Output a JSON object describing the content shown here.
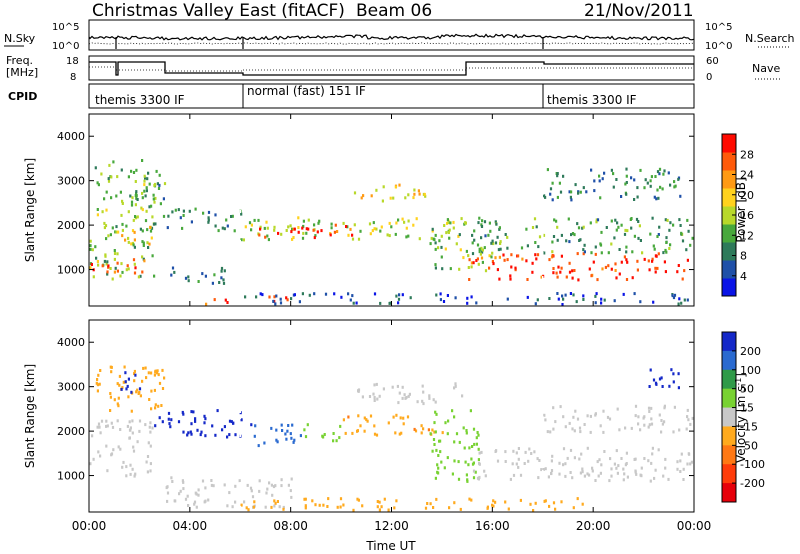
{
  "header": {
    "title": "Christmas Valley East (fitACF)",
    "beam": "Beam 06",
    "date": "21/Nov/2011"
  },
  "summary_panels": {
    "nsky_label": "N.Sky",
    "nsky_ticks": [
      "10^5",
      "10^0"
    ],
    "nsearch_label": "N.Search",
    "nsearch_ticks": [
      "10^5",
      "10^0"
    ],
    "freq_label_line1": "Freq.",
    "freq_label_line2": "[MHz]",
    "freq_ticks": [
      "18",
      "8"
    ],
    "nave_label": "Nave",
    "nave_ticks": [
      "60",
      "0"
    ],
    "cpid_label": "CPID",
    "cpid_segments": [
      {
        "label": "themis 3300 IF",
        "start_hour": 0,
        "end_hour": 6
      },
      {
        "label": "normal (fast) 151 IF",
        "start_hour": 6,
        "end_hour": 18
      },
      {
        "label": "themis 3300 IF",
        "start_hour": 18,
        "end_hour": 24
      }
    ]
  },
  "chart_data": [
    {
      "type": "heatmap",
      "name": "power",
      "ylabel": "Slant Range [km]",
      "xlabel": "Time UT",
      "ylim": [
        180,
        4500
      ],
      "y_ticks": [
        1000,
        2000,
        3000,
        4000
      ],
      "x_ticks": [
        "00:00",
        "04:00",
        "08:00",
        "12:00",
        "16:00",
        "20:00",
        "00:00"
      ],
      "colorbar": {
        "label": "Power [dB]",
        "ticks": [
          "4",
          "8",
          "12",
          "16",
          "20",
          "24",
          "28"
        ],
        "colors": [
          "#0a14e6",
          "#1f50a8",
          "#2e7a5a",
          "#48a83c",
          "#b8d82a",
          "#ffd21e",
          "#ff9a14",
          "#ff5a0a",
          "#ff0a00"
        ]
      },
      "scatter_regions": [
        {
          "t": [
            0.0,
            2.6
          ],
          "r": [
            800,
            3500
          ],
          "power": 14
        },
        {
          "t": [
            0.0,
            2.3
          ],
          "r": [
            950,
            1300
          ],
          "power": 26
        },
        {
          "t": [
            1.1,
            2.5
          ],
          "r": [
            1500,
            2000
          ],
          "power": 20
        },
        {
          "t": [
            1.8,
            3.0
          ],
          "r": [
            2500,
            3300
          ],
          "power": 12
        },
        {
          "t": [
            2.5,
            6.0
          ],
          "r": [
            1900,
            2400
          ],
          "power": 10
        },
        {
          "t": [
            3.0,
            5.5
          ],
          "r": [
            700,
            1100
          ],
          "power": 8
        },
        {
          "t": [
            4.5,
            5.7
          ],
          "r": [
            240,
            420
          ],
          "power": 26
        },
        {
          "t": [
            6.0,
            15.0
          ],
          "r": [
            1700,
            2200
          ],
          "power": 16
        },
        {
          "t": [
            6.5,
            10.5
          ],
          "r": [
            1750,
            2050
          ],
          "power": 27
        },
        {
          "t": [
            7.0,
            8.5
          ],
          "r": [
            250,
            430
          ],
          "power": 26
        },
        {
          "t": [
            10.5,
            13.5
          ],
          "r": [
            2550,
            2950
          ],
          "power": 20
        },
        {
          "t": [
            13.5,
            16.0
          ],
          "r": [
            1000,
            2200
          ],
          "power": 14
        },
        {
          "t": [
            15.0,
            24.0
          ],
          "r": [
            800,
            1400
          ],
          "power": 27
        },
        {
          "t": [
            15.0,
            24.0
          ],
          "r": [
            1400,
            2200
          ],
          "power": 12
        },
        {
          "t": [
            18.0,
            24.0
          ],
          "r": [
            2600,
            3300
          ],
          "power": 10
        },
        {
          "t": [
            6.0,
            24.0
          ],
          "r": [
            200,
            500
          ],
          "power": 6
        }
      ]
    },
    {
      "type": "heatmap",
      "name": "velocity",
      "ylabel": "Slant Range [km]",
      "xlabel": "Time UT",
      "ylim": [
        180,
        4500
      ],
      "y_ticks": [
        1000,
        2000,
        3000,
        4000
      ],
      "x_ticks": [
        "00:00",
        "04:00",
        "08:00",
        "12:00",
        "16:00",
        "20:00",
        "00:00"
      ],
      "colorbar": {
        "label_main": "Velocity [m s",
        "label_sup": "-1",
        "label_end": "]",
        "ticks": [
          "200",
          "100",
          "50",
          "15",
          "-15",
          "-50",
          "-100",
          "-200"
        ],
        "colors": [
          "#1428c8",
          "#2a6ad0",
          "#2f9a48",
          "#78d232",
          "#c8c8c8",
          "#ffaa1e",
          "#ff7814",
          "#ff3c0a",
          "#e6000a"
        ]
      },
      "scatter_regions": [
        {
          "t": [
            0.0,
            3.0
          ],
          "r": [
            2400,
            3500
          ],
          "v": -60
        },
        {
          "t": [
            0.0,
            2.5
          ],
          "r": [
            1000,
            2300
          ],
          "v": 0
        },
        {
          "t": [
            1.0,
            2.0
          ],
          "r": [
            2900,
            3400
          ],
          "v": 200
        },
        {
          "t": [
            2.5,
            6.5
          ],
          "r": [
            1900,
            2500
          ],
          "v": 200
        },
        {
          "t": [
            6.5,
            8.5
          ],
          "r": [
            1650,
            2200
          ],
          "v": 150
        },
        {
          "t": [
            8.5,
            10.0
          ],
          "r": [
            1800,
            2200
          ],
          "v": 60
        },
        {
          "t": [
            10.0,
            14.0
          ],
          "r": [
            1900,
            2400
          ],
          "v": -70
        },
        {
          "t": [
            10.5,
            15.0
          ],
          "r": [
            2650,
            3100
          ],
          "v": 0
        },
        {
          "t": [
            13.5,
            15.5
          ],
          "r": [
            900,
            2500
          ],
          "v": 40
        },
        {
          "t": [
            15.0,
            24.0
          ],
          "r": [
            900,
            1650
          ],
          "v": 0
        },
        {
          "t": [
            18.0,
            24.0
          ],
          "r": [
            2000,
            2600
          ],
          "v": 0
        },
        {
          "t": [
            22.0,
            23.5
          ],
          "r": [
            3000,
            3500
          ],
          "v": 200
        },
        {
          "t": [
            3.0,
            8.0
          ],
          "r": [
            300,
            1000
          ],
          "v": 0
        },
        {
          "t": [
            6.0,
            20.0
          ],
          "r": [
            220,
            520
          ],
          "v": -60
        }
      ]
    }
  ]
}
